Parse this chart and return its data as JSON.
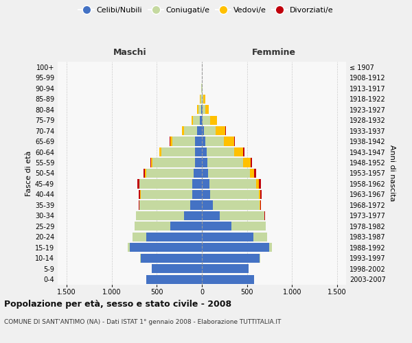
{
  "age_groups": [
    "0-4",
    "5-9",
    "10-14",
    "15-19",
    "20-24",
    "25-29",
    "30-34",
    "35-39",
    "40-44",
    "45-49",
    "50-54",
    "55-59",
    "60-64",
    "65-69",
    "70-74",
    "75-79",
    "80-84",
    "85-89",
    "90-94",
    "95-99",
    "100+"
  ],
  "birth_years": [
    "2003-2007",
    "1998-2002",
    "1993-1997",
    "1988-1992",
    "1983-1987",
    "1978-1982",
    "1973-1977",
    "1968-1972",
    "1963-1967",
    "1958-1962",
    "1953-1957",
    "1948-1952",
    "1943-1947",
    "1938-1942",
    "1933-1937",
    "1928-1932",
    "1923-1927",
    "1918-1922",
    "1913-1917",
    "1908-1912",
    "≤ 1907"
  ],
  "male_celibi": [
    620,
    560,
    680,
    800,
    620,
    350,
    200,
    130,
    110,
    110,
    90,
    80,
    80,
    80,
    50,
    20,
    10,
    0,
    0,
    0,
    0
  ],
  "male_coniugati": [
    0,
    0,
    5,
    20,
    150,
    400,
    530,
    560,
    570,
    580,
    530,
    470,
    370,
    250,
    150,
    80,
    30,
    15,
    5,
    0,
    0
  ],
  "male_vedovi": [
    0,
    0,
    0,
    0,
    0,
    0,
    0,
    0,
    5,
    5,
    10,
    15,
    20,
    20,
    20,
    15,
    10,
    5,
    0,
    0,
    0
  ],
  "male_divorziati": [
    0,
    0,
    0,
    0,
    0,
    0,
    5,
    10,
    15,
    20,
    20,
    10,
    5,
    5,
    0,
    0,
    0,
    0,
    0,
    0,
    0
  ],
  "female_celibi": [
    580,
    520,
    640,
    750,
    570,
    330,
    200,
    120,
    90,
    80,
    70,
    60,
    50,
    40,
    20,
    10,
    5,
    0,
    0,
    0,
    0
  ],
  "female_coniugati": [
    0,
    0,
    5,
    25,
    150,
    380,
    490,
    520,
    540,
    520,
    460,
    400,
    310,
    200,
    130,
    80,
    30,
    15,
    5,
    0,
    0
  ],
  "female_vedovi": [
    0,
    0,
    0,
    0,
    0,
    0,
    5,
    5,
    15,
    30,
    50,
    80,
    100,
    120,
    110,
    80,
    40,
    20,
    5,
    0,
    0
  ],
  "female_divorziati": [
    0,
    0,
    0,
    0,
    0,
    0,
    5,
    10,
    20,
    25,
    20,
    15,
    10,
    5,
    5,
    0,
    0,
    0,
    0,
    0,
    0
  ],
  "color_celibi": "#4472c4",
  "color_coniugati": "#c5d9a0",
  "color_vedovi": "#ffc000",
  "color_divorziati": "#c0000c",
  "xlim": 1600,
  "xtick_vals": [
    -1500,
    -1000,
    -500,
    0,
    500,
    1000,
    1500
  ],
  "xtick_labs": [
    "1.500",
    "1.000",
    "500",
    "0",
    "500",
    "1.000",
    "1.500"
  ],
  "title_main": "Popolazione per età, sesso e stato civile - 2008",
  "title_sub": "COMUNE DI SANT'ANTIMO (NA) - Dati ISTAT 1° gennaio 2008 - Elaborazione TUTTITALIA.IT",
  "ylabel_left": "Fasce di età",
  "ylabel_right": "Anni di nascita",
  "legend_labels": [
    "Celibi/Nubili",
    "Coniugati/e",
    "Vedovi/e",
    "Divorziati/e"
  ],
  "header_maschi": "Maschi",
  "header_femmine": "Femmine",
  "bg_color": "#f0f0f0",
  "plot_bg": "#f8f8f8"
}
